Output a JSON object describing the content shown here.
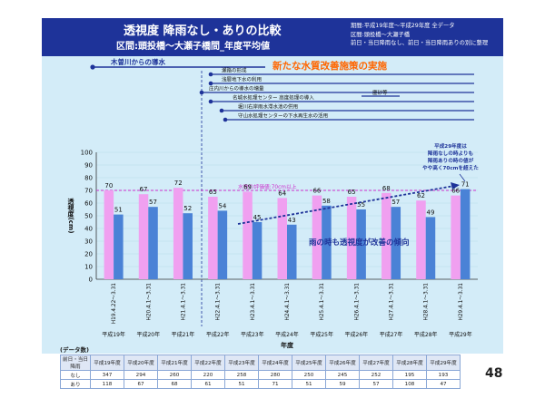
{
  "header": {
    "title": "透視度 降雨なし・ありの比較",
    "subtitle": "区間:頭投橋〜大瀬子橋間_年度平均値",
    "info": [
      "期間:平成19年度〜平成29年度 全データ",
      "区間:頭投橋〜大瀬子橋",
      "前日・当日降雨なし、前日・当日降雨ありの別に整理"
    ]
  },
  "timeline": {
    "heading": "新たな水質改善施策の実施",
    "items": [
      "木曽川からの導水",
      "瀬路の形成",
      "浅層地下水の利用",
      "庄内川からの導水の増量",
      "名城水処理センター 高度処理の導入",
      "堀川右岸雨水滞水池の供用",
      "守山水処理センターの下水再生水の活用",
      "塵砂等"
    ]
  },
  "chart_data": {
    "type": "bar",
    "categories": [
      "H19.4.22〜3.31",
      "H20.4.1〜3.31",
      "H21.4.1〜3.31",
      "H22.4.1〜3.31",
      "H23.4.1〜3.31",
      "H24.4.1〜3.31",
      "H25.4.1〜3.31",
      "H26.4.1〜3.31",
      "H27.4.1〜3.31",
      "H28.4.1〜3.31",
      "H29.4.1〜3.31"
    ],
    "year_labels": [
      "平成19年",
      "平成20年",
      "平成21年",
      "平成22年",
      "平成23年",
      "平成24年",
      "平成25年",
      "平成26年",
      "平成27年",
      "平成28年",
      "平成29年"
    ],
    "series": [
      {
        "name": "なし",
        "color": "#f0a0f0",
        "values": [
          70,
          67,
          72,
          65,
          69,
          64,
          66,
          65,
          68,
          62,
          66
        ]
      },
      {
        "name": "あり",
        "color": "#4a82d6",
        "values": [
          51,
          57,
          52,
          54,
          45,
          43,
          58,
          55,
          57,
          49,
          71
        ]
      }
    ],
    "ylabel": "透視度(cm)",
    "xlabel": "年度",
    "ylim": [
      0,
      100
    ],
    "yticks": [
      0,
      10,
      20,
      30,
      40,
      50,
      60,
      70,
      80,
      90,
      100
    ],
    "reference_line": {
      "value": 70,
      "label": "水質の評価値:70cm以上"
    },
    "annotations": {
      "trend": "雨の時も透視度が改善の傾向",
      "note": [
        "平成29年度は",
        "降雨なしの時よりも",
        "降雨ありの時の値が",
        "やや高く70cmを超えた"
      ]
    }
  },
  "table": {
    "caption": "(データ数)",
    "header": [
      "前日・当日降雨",
      "平成19年度",
      "平成20年度",
      "平成21年度",
      "平成22年度",
      "平成23年度",
      "平成24年度",
      "平成25年度",
      "平成26年度",
      "平成27年度",
      "平成28年度",
      "平成29年度"
    ],
    "rows": [
      {
        "label": "なし",
        "values": [
          "347",
          "294",
          "260",
          "220",
          "258",
          "280",
          "250",
          "245",
          "252",
          "195",
          "193"
        ]
      },
      {
        "label": "あり",
        "values": [
          "118",
          "67",
          "68",
          "61",
          "51",
          "71",
          "51",
          "59",
          "57",
          "108",
          "47"
        ]
      }
    ]
  },
  "page_number": "48"
}
